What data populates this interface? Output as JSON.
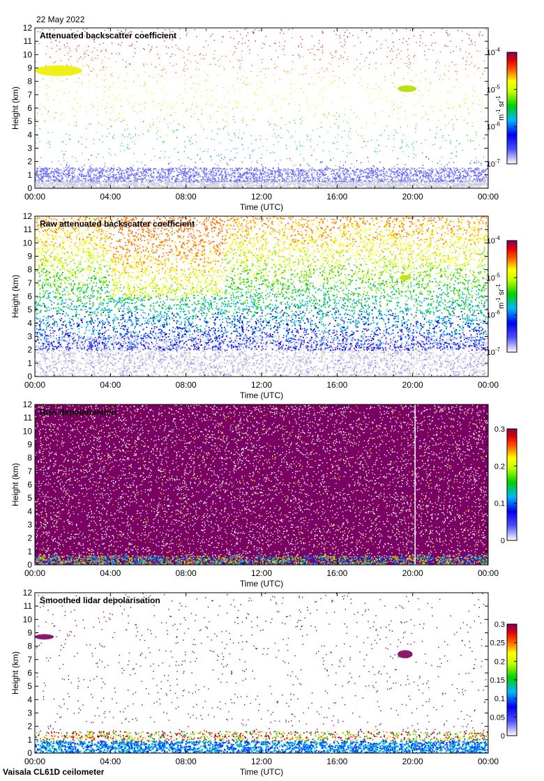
{
  "date_label": "22 May 2022",
  "footer_label": "Vaisala CL61D ceilometer",
  "chart_data": [
    {
      "type": "heatmap",
      "title": "Attenuated backscatter coefficient",
      "xlabel": "Time (UTC)",
      "ylabel": "Height (km)",
      "x_ticks": [
        "00:00",
        "04:00",
        "08:00",
        "12:00",
        "16:00",
        "20:00",
        "00:00"
      ],
      "y_ticks": [
        "0",
        "1",
        "2",
        "3",
        "4",
        "5",
        "6",
        "7",
        "8",
        "9",
        "10",
        "11",
        "12"
      ],
      "ylim": [
        0,
        12
      ],
      "colorbar": {
        "scale": "log",
        "range": [
          1e-07,
          0.0001
        ],
        "ticks": [
          {
            "base": "10",
            "exp": "-7"
          },
          {
            "base": "10",
            "exp": "-6"
          },
          {
            "base": "10",
            "exp": "-5"
          },
          {
            "base": "10",
            "exp": "-4"
          }
        ],
        "unit": {
          "m": "m",
          "m_exp": "-1",
          "sr": "sr",
          "sr_exp": "-1"
        }
      },
      "features": [
        {
          "type": "cloud",
          "time_h": [
            0,
            2.5
          ],
          "height_km": [
            8.4,
            9.2
          ],
          "color": "#eeee00"
        },
        {
          "type": "cloud",
          "time_h": [
            19.2,
            20.2
          ],
          "height_km": [
            7.2,
            7.7
          ],
          "color": "#b0e000"
        }
      ]
    },
    {
      "type": "heatmap",
      "title": "Raw attenuated backscatter coefficient",
      "xlabel": "Time (UTC)",
      "ylabel": "Height (km)",
      "x_ticks": [
        "00:00",
        "04:00",
        "08:00",
        "12:00",
        "16:00",
        "20:00",
        "00:00"
      ],
      "y_ticks": [
        "0",
        "1",
        "2",
        "3",
        "4",
        "5",
        "6",
        "7",
        "8",
        "9",
        "10",
        "11",
        "12"
      ],
      "ylim": [
        0,
        12
      ],
      "colorbar": {
        "scale": "log",
        "range": [
          1e-07,
          0.0001
        ],
        "ticks": [
          {
            "base": "10",
            "exp": "-7"
          },
          {
            "base": "10",
            "exp": "-6"
          },
          {
            "base": "10",
            "exp": "-5"
          },
          {
            "base": "10",
            "exp": "-4"
          }
        ],
        "unit": {
          "m": "m",
          "m_exp": "-1",
          "sr": "sr",
          "sr_exp": "-1"
        }
      },
      "features": [
        {
          "type": "cloud",
          "time_h": [
            19.3,
            19.9
          ],
          "height_km": [
            7.2,
            7.6
          ],
          "color": "#c8e000"
        },
        {
          "type": "data-gap",
          "time_h": [
            20.1,
            20.15
          ],
          "height_km": [
            0,
            12
          ],
          "color": "#ffffff"
        }
      ]
    },
    {
      "type": "heatmap",
      "title": "Raw depolarisation",
      "xlabel": "Time (UTC)",
      "ylabel": "Height (km)",
      "x_ticks": [
        "00:00",
        "04:00",
        "08:00",
        "12:00",
        "16:00",
        "20:00",
        "00:00"
      ],
      "y_ticks": [
        "0",
        "1",
        "2",
        "3",
        "4",
        "5",
        "6",
        "7",
        "8",
        "9",
        "10",
        "11",
        "12"
      ],
      "ylim": [
        0,
        12
      ],
      "colorbar": {
        "scale": "linear",
        "range": [
          0,
          0.3
        ],
        "ticks": [
          "0",
          "0.1",
          "0.2",
          "0.3"
        ]
      },
      "features": [
        {
          "type": "data-gap",
          "time_h": [
            20.1,
            20.15
          ],
          "height_km": [
            0,
            12
          ],
          "color": "#ffffff"
        }
      ]
    },
    {
      "type": "heatmap",
      "title": "Smoothed lidar depolarisation",
      "xlabel": "Time (UTC)",
      "ylabel": "Height (km)",
      "x_ticks": [
        "00:00",
        "04:00",
        "08:00",
        "12:00",
        "16:00",
        "20:00",
        "00:00"
      ],
      "y_ticks": [
        "0",
        "1",
        "2",
        "3",
        "4",
        "5",
        "6",
        "7",
        "8",
        "9",
        "10",
        "11",
        "12"
      ],
      "ylim": [
        0,
        12
      ],
      "colorbar": {
        "scale": "linear",
        "range": [
          0,
          0.3
        ],
        "ticks": [
          "0",
          "0.05",
          "0.1",
          "0.15",
          "0.2",
          "0.25",
          "0.3"
        ]
      },
      "features": [
        {
          "type": "cloud",
          "time_h": [
            0,
            1.0
          ],
          "height_km": [
            8.5,
            8.9
          ],
          "color": "#800060"
        },
        {
          "type": "cloud",
          "time_h": [
            19.2,
            20.0
          ],
          "height_km": [
            7.1,
            7.7
          ],
          "color": "#800060"
        }
      ]
    }
  ]
}
